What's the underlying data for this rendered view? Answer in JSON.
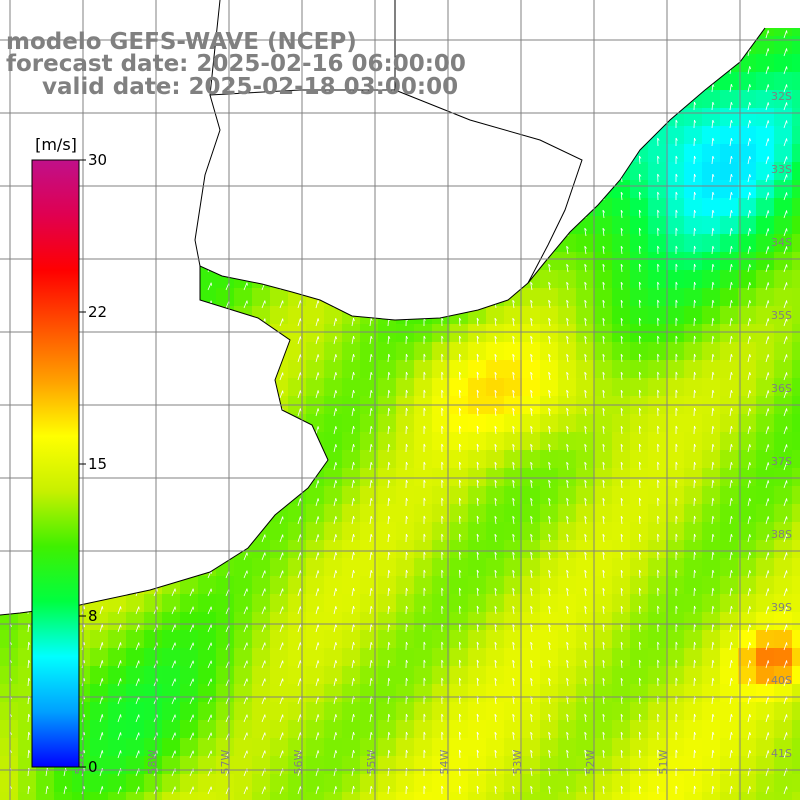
{
  "title": {
    "model": "modelo GEFS-WAVE (NCEP)",
    "forecast": "forecast date: 2025-02-16 06:00:00",
    "valid": "valid date: 2025-02-18 03:00:00"
  },
  "colorbar": {
    "unit": "[m/s]",
    "ticks": [
      "30",
      "22",
      "15",
      "8",
      "0"
    ],
    "stops": [
      "#0000ff",
      "#00a0ff",
      "#00ffff",
      "#00ff40",
      "#40f000",
      "#c8f000",
      "#ffff00",
      "#ffa000",
      "#ff5000",
      "#ff0000",
      "#e00050",
      "#c0108a"
    ]
  },
  "map": {
    "lon_labels": [
      "59W",
      "58W",
      "57W",
      "56W",
      "55W",
      "54W",
      "53W",
      "52W",
      "51W"
    ],
    "lat_labels": [
      "32S",
      "33S",
      "34S",
      "35S",
      "36S",
      "37S",
      "38S",
      "39S",
      "40S",
      "41S"
    ],
    "colors": {
      "land": "#ffffff",
      "coast": "#000000",
      "grid": "#808080",
      "vector": "#ffffff"
    }
  }
}
